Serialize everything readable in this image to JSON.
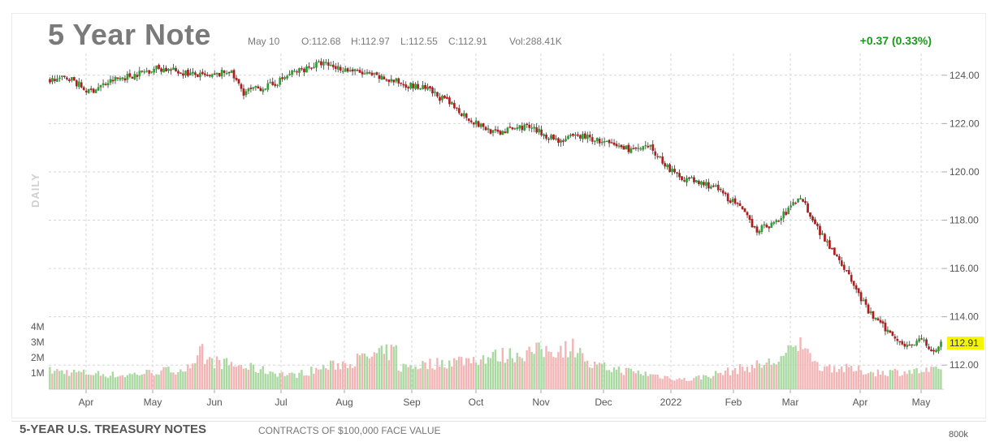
{
  "header": {
    "title": "5 Year Note",
    "date": "May 10",
    "open": "O:112.68",
    "high": "H:112.97",
    "low": "L:112.55",
    "close": "C:112.91",
    "volume": "Vol:288.41K",
    "change": "+0.37 (0.33%)",
    "side_label": "DAILY"
  },
  "footer": {
    "title": "5-YEAR U.S. TREASURY NOTES",
    "subtitle": "CONTRACTS OF $100,000 FACE VALUE",
    "axis_value": "800k"
  },
  "colors": {
    "up": "#2e9e2e",
    "down": "#b01c1c",
    "volume_up": "#a9d8a0",
    "volume_down": "#f2b4b4",
    "grid": "#d6d6d6",
    "last_price_bg": "#f5f500"
  },
  "chart_data": {
    "type": "candlestick",
    "ylim": [
      111,
      124.9
    ],
    "y_ticks": [
      112,
      114,
      116,
      118,
      120,
      122,
      124
    ],
    "y_tick_labels": [
      "112.00",
      "114.00",
      "116.00",
      "118.00",
      "120.00",
      "122.00",
      "124.00"
    ],
    "x_tick_labels": [
      "Apr",
      "May",
      "Jun",
      "Jul",
      "Aug",
      "Sep",
      "Oct",
      "Nov",
      "Dec",
      "2022",
      "Feb",
      "Mar",
      "Apr",
      "May"
    ],
    "last_price": "112.91",
    "last_value": 112.91,
    "volume_tick_labels": [
      "4M",
      "3M",
      "2M",
      "1M"
    ],
    "volume_ticks": [
      4,
      3,
      2,
      1
    ],
    "volume_unit": "M",
    "price_anchors": [
      [
        0,
        123.8
      ],
      [
        8,
        123.9
      ],
      [
        16,
        123.3
      ],
      [
        26,
        123.8
      ],
      [
        34,
        124.0
      ],
      [
        44,
        124.3
      ],
      [
        56,
        124.1
      ],
      [
        66,
        123.9
      ],
      [
        74,
        124.2
      ],
      [
        80,
        123.3
      ],
      [
        92,
        123.6
      ],
      [
        100,
        124.1
      ],
      [
        112,
        124.5
      ],
      [
        124,
        124.2
      ],
      [
        132,
        124.0
      ],
      [
        140,
        123.8
      ],
      [
        156,
        123.4
      ],
      [
        164,
        122.9
      ],
      [
        176,
        122.0
      ],
      [
        184,
        121.6
      ],
      [
        196,
        121.9
      ],
      [
        210,
        121.3
      ],
      [
        220,
        121.5
      ],
      [
        232,
        121.1
      ],
      [
        242,
        120.9
      ],
      [
        248,
        121.0
      ],
      [
        258,
        119.9
      ],
      [
        266,
        119.6
      ],
      [
        274,
        119.4
      ],
      [
        284,
        118.6
      ],
      [
        292,
        117.6
      ],
      [
        300,
        117.9
      ],
      [
        310,
        119.0
      ],
      [
        318,
        117.5
      ],
      [
        326,
        116.4
      ],
      [
        332,
        115.3
      ],
      [
        338,
        114.2
      ],
      [
        346,
        113.4
      ],
      [
        354,
        112.8
      ],
      [
        360,
        113.1
      ],
      [
        364,
        112.5
      ],
      [
        368,
        112.9
      ]
    ],
    "volume_anchors": [
      [
        0,
        1.2
      ],
      [
        30,
        0.9
      ],
      [
        60,
        1.4
      ],
      [
        63,
        2.7
      ],
      [
        64,
        1.9
      ],
      [
        100,
        0.9
      ],
      [
        143,
        2.5
      ],
      [
        144,
        1.4
      ],
      [
        220,
        2.8
      ],
      [
        221,
        1.6
      ],
      [
        263,
        0.6
      ],
      [
        300,
        1.8
      ],
      [
        313,
        3.2
      ],
      [
        314,
        2.6
      ],
      [
        315,
        1.6
      ],
      [
        340,
        1.1
      ],
      [
        368,
        1.2
      ]
    ]
  }
}
